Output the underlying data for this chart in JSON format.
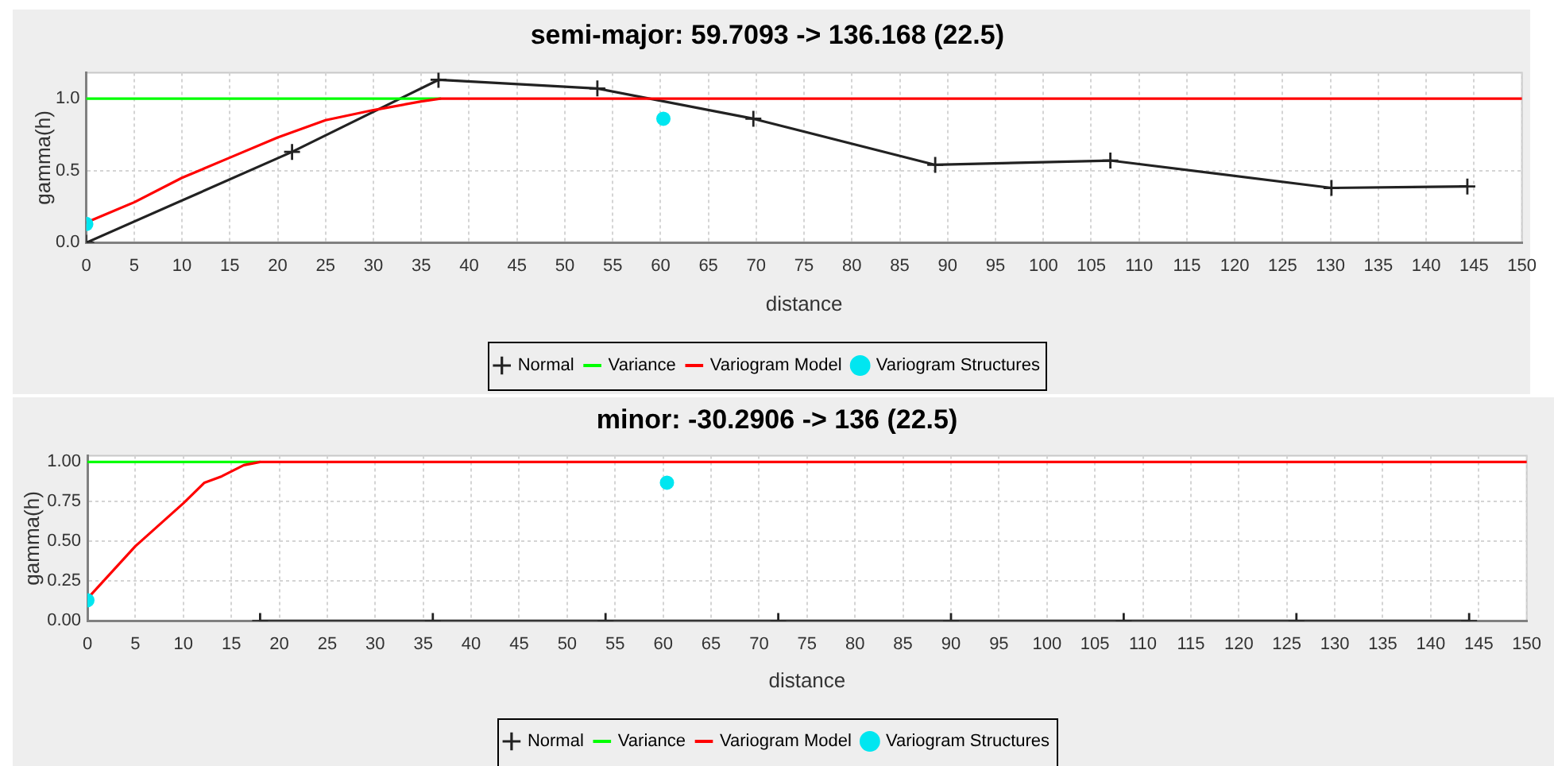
{
  "chart_data": [
    {
      "type": "line",
      "title": "semi-major: 59.7093 -> 136.168 (22.5)",
      "xlabel": "distance",
      "ylabel": "gamma(h)",
      "xlim": [
        0,
        150
      ],
      "xticks": [
        0,
        5,
        10,
        15,
        20,
        25,
        30,
        35,
        40,
        45,
        50,
        55,
        60,
        65,
        70,
        75,
        80,
        85,
        90,
        95,
        100,
        105,
        110,
        115,
        120,
        125,
        130,
        135,
        140,
        145,
        150
      ],
      "ylim": [
        0,
        1.18
      ],
      "yticks": [
        {
          "value": 0,
          "label": "0.0"
        },
        0.5,
        {
          "value": 1,
          "label": "1.0"
        }
      ],
      "grid": true,
      "legend": "bottom",
      "series": [
        {
          "name": "Normal",
          "type": "line",
          "marker": "cross",
          "color": "#222222",
          "x": [
            0,
            21.5,
            36.8,
            53.4,
            69.7,
            88.7,
            107,
            130.1,
            144.3
          ],
          "values": [
            0,
            0.63,
            1.13,
            1.07,
            0.86,
            0.54,
            0.57,
            0.38,
            0.39
          ]
        },
        {
          "name": "Variance",
          "type": "line",
          "marker": "none",
          "color": "#00ff00",
          "x": [
            0,
            37
          ],
          "values": [
            1,
            1
          ]
        },
        {
          "name": "Variogram Model",
          "type": "line",
          "marker": "none",
          "color": "#ff0000",
          "x": [
            0,
            5,
            10,
            15,
            20,
            25,
            30,
            35,
            37,
            150
          ],
          "values": [
            0.14,
            0.28,
            0.45,
            0.59,
            0.73,
            0.85,
            0.92,
            0.98,
            1,
            1
          ]
        },
        {
          "name": "Variogram Structures",
          "type": "scatter",
          "marker": "circle",
          "color": "#00e6f0",
          "x": [
            0,
            60.3
          ],
          "values": [
            0.13,
            0.86
          ]
        }
      ]
    },
    {
      "type": "line",
      "title": "minor: -30.2906 -> 136 (22.5)",
      "xlabel": "distance",
      "ylabel": "gamma(h)",
      "xlim": [
        0,
        150
      ],
      "xticks": [
        0,
        5,
        10,
        15,
        20,
        25,
        30,
        35,
        40,
        45,
        50,
        55,
        60,
        65,
        70,
        75,
        80,
        85,
        90,
        95,
        100,
        105,
        110,
        115,
        120,
        125,
        130,
        135,
        140,
        145,
        150
      ],
      "ylim": [
        0,
        1.04
      ],
      "yticks": [
        {
          "value": 0,
          "label": "0.00"
        },
        0.25,
        {
          "value": 0.5,
          "label": "0.50"
        },
        0.75,
        {
          "value": 1,
          "label": "1.00"
        }
      ],
      "grid": true,
      "legend": "bottom",
      "series": [
        {
          "name": "Normal",
          "type": "line",
          "marker": "cross",
          "color": "#222222",
          "x": [
            18,
            36,
            54,
            72,
            90,
            108,
            126,
            144
          ],
          "values": [
            0,
            0,
            0,
            0,
            0,
            0,
            0,
            0
          ]
        },
        {
          "name": "Variance",
          "type": "line",
          "marker": "none",
          "color": "#00ff00",
          "x": [
            0,
            18
          ],
          "values": [
            1,
            1
          ]
        },
        {
          "name": "Variogram Model",
          "type": "line",
          "marker": "none",
          "color": "#ff0000",
          "x": [
            0,
            5,
            10,
            12.2,
            14,
            16.3,
            18,
            150
          ],
          "values": [
            0.14,
            0.47,
            0.74,
            0.87,
            0.91,
            0.98,
            1,
            1
          ]
        },
        {
          "name": "Variogram Structures",
          "type": "scatter",
          "marker": "circle",
          "color": "#00e6f0",
          "x": [
            0,
            60.4
          ],
          "values": [
            0.13,
            0.87
          ]
        }
      ]
    }
  ]
}
